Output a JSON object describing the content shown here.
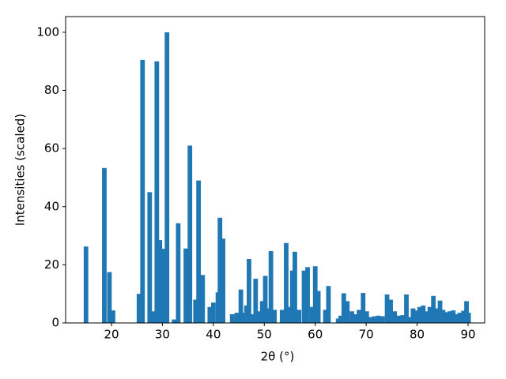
{
  "chart_data": {
    "type": "bar",
    "xlabel": "2θ (°)",
    "ylabel": "Intensities (scaled)",
    "color": "#1f77b4",
    "x": [
      15,
      18.6,
      19.6,
      20.3,
      25.4,
      26.1,
      27.5,
      28.2,
      28.9,
      29.5,
      30.1,
      30.9,
      32.3,
      33.1,
      34.6,
      35.4,
      36.5,
      37.1,
      37.9,
      39.3,
      40,
      40.9,
      41.3,
      41.9,
      43.7,
      44.6,
      45.4,
      46.1,
      46.5,
      47,
      47.8,
      48.3,
      48.9,
      49.6,
      50.2,
      50.8,
      51.3,
      52,
      53.5,
      54.3,
      55,
      55.5,
      56,
      56.8,
      57.8,
      58.5,
      59.4,
      60,
      60.6,
      62,
      62.6,
      64.5,
      65,
      65.6,
      66.3,
      67.2,
      67.8,
      68.6,
      69.4,
      70.1,
      70.8,
      71.6,
      72.4,
      73.2,
      74.1,
      74.8,
      75.6,
      76.4,
      77.2,
      77.9,
      78.6,
      79.2,
      79.9,
      80.5,
      81.2,
      81.9,
      82.5,
      83.2,
      83.9,
      84.5,
      85.1,
      85.8,
      86.4,
      87.1,
      87.7,
      88.4,
      89.1,
      89.7,
      90.1
    ],
    "values": [
      26.3,
      53.3,
      17.5,
      4.3,
      10,
      90.5,
      45,
      4,
      90,
      28.5,
      25.5,
      100,
      1.2,
      34.3,
      25.6,
      61,
      8,
      49,
      16.5,
      5.5,
      7,
      10.5,
      36.2,
      29,
      3,
      3.5,
      11.5,
      3.5,
      6,
      22,
      3,
      15.2,
      4,
      7.5,
      16.2,
      5,
      24.7,
      4.5,
      4.5,
      27.5,
      5.5,
      18,
      24.5,
      4.5,
      18,
      19.2,
      5.5,
      19.5,
      11,
      4.5,
      12.7,
      1.5,
      2.5,
      10.2,
      7.5,
      4,
      3,
      4.5,
      10.3,
      4,
      2,
      2.3,
      2.5,
      2.3,
      9.8,
      8,
      4,
      2.5,
      2.7,
      9.8,
      2,
      5,
      4.3,
      5.5,
      6,
      4,
      5.5,
      9.3,
      5,
      7.7,
      4.5,
      3.7,
      4,
      4.3,
      3,
      3.5,
      4.2,
      7.5,
      3.5
    ],
    "xlim": [
      11,
      93.26
    ],
    "ylim": [
      0,
      105.4
    ],
    "xticks": [
      20,
      30,
      40,
      50,
      60,
      70,
      80,
      90
    ],
    "yticks": [
      0,
      20,
      40,
      60,
      80,
      100
    ]
  }
}
